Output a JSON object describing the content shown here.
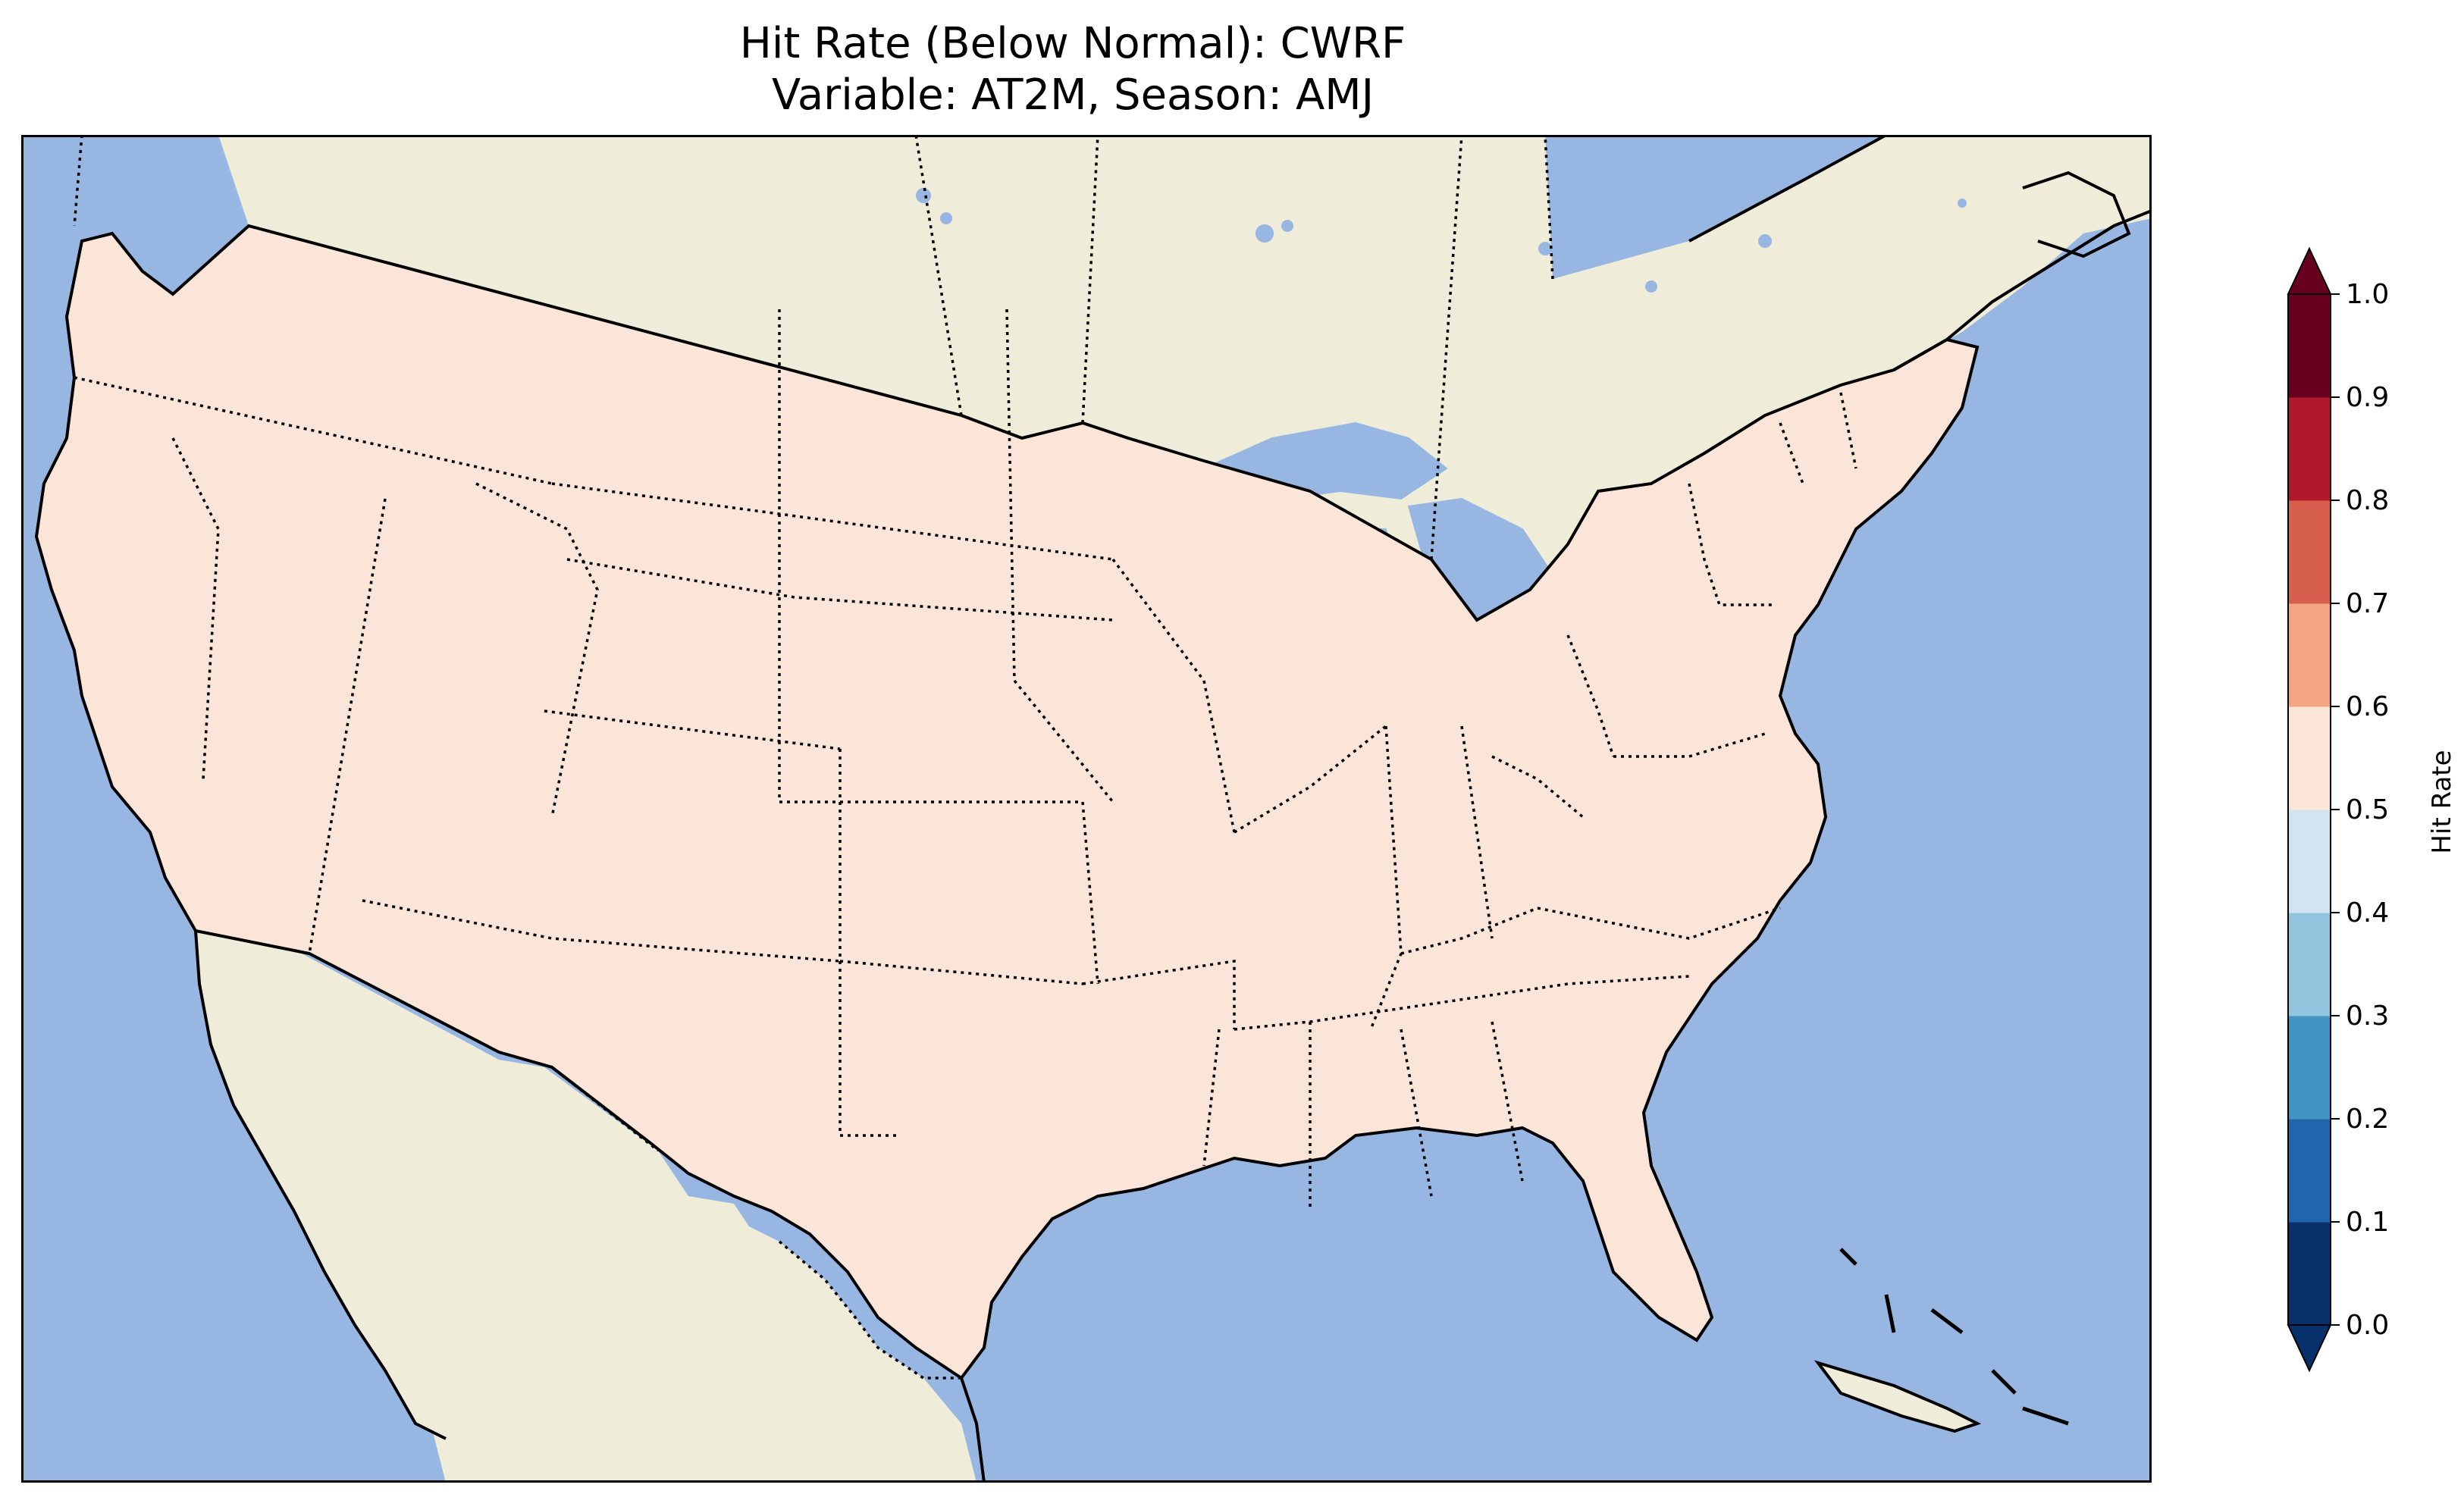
{
  "title": {
    "line1": "Hit Rate (Below Normal): CWRF",
    "line2": "Variable: AT2M, Season: AMJ"
  },
  "map": {
    "region": "Contiguous United States",
    "ocean_color": "#97b6e1",
    "land_color": "#efedda",
    "borders": "dotted state and national borders, solid coastlines"
  },
  "colorbar": {
    "label": "Hit Rate",
    "ticks": [
      "0.0",
      "0.1",
      "0.2",
      "0.3",
      "0.4",
      "0.5",
      "0.6",
      "0.7",
      "0.8",
      "0.9",
      "1.0"
    ],
    "colors": [
      "#08306b",
      "#2166ac",
      "#4393c3",
      "#92c5de",
      "#d1e5f0",
      "#fbe4d8",
      "#f4a582",
      "#d6604d",
      "#b2182b",
      "#67001f"
    ],
    "extend_low": "#08306b",
    "extend_high": "#67001f"
  }
}
